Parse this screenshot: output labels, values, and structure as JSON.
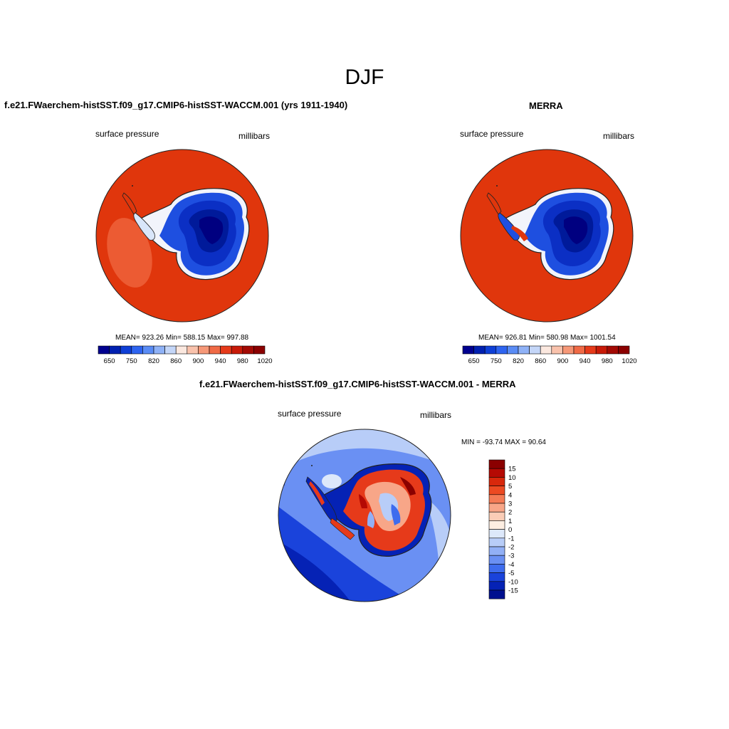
{
  "figure": {
    "title": "DJF",
    "field_label": "surface pressure",
    "units_label": "millibars"
  },
  "panels": {
    "model": {
      "title": "f.e21.FWaerchem-histSST.f09_g17.CMIP6-histSST-WACCM.001 (yrs 1911-1940)",
      "stats": "MEAN= 923.26  Min= 588.15  Max= 997.88"
    },
    "obs": {
      "title": "MERRA",
      "stats": "MEAN= 926.81  Min= 580.98  Max= 1001.54"
    },
    "diff": {
      "title": "f.e21.FWaerchem-histSST.f09_g17.CMIP6-histSST-WACCM.001 - MERRA",
      "stats": "MIN = -93.74 MAX =  90.64"
    }
  },
  "colorbars": {
    "abs_tick_labels": [
      "650",
      "750",
      "820",
      "860",
      "900",
      "940",
      "980",
      "1020"
    ],
    "abs_colors": [
      "#00008f",
      "#0020b0",
      "#0e3fd6",
      "#2e64f0",
      "#5a8cf5",
      "#8fb2f7",
      "#c4d6f8",
      "#fbe8df",
      "#f9c2ac",
      "#f69878",
      "#f06a46",
      "#e63a1a",
      "#c81a08",
      "#a30a04",
      "#8b0000"
    ],
    "diff_tick_labels": [
      "15",
      "10",
      "5",
      "4",
      "3",
      "2",
      "1",
      "0",
      "-1",
      "-2",
      "-3",
      "-4",
      "-5",
      "-10",
      "-15"
    ],
    "diff_colors": [
      "#8b0000",
      "#b50a04",
      "#d8280c",
      "#ec4a22",
      "#f47b55",
      "#f8a688",
      "#fbcdb7",
      "#fdeee2",
      "#dde8fa",
      "#b8cdf8",
      "#92b0f6",
      "#6a90f3",
      "#3e6cee",
      "#1a43db",
      "#0522b5",
      "#00108f"
    ]
  }
}
